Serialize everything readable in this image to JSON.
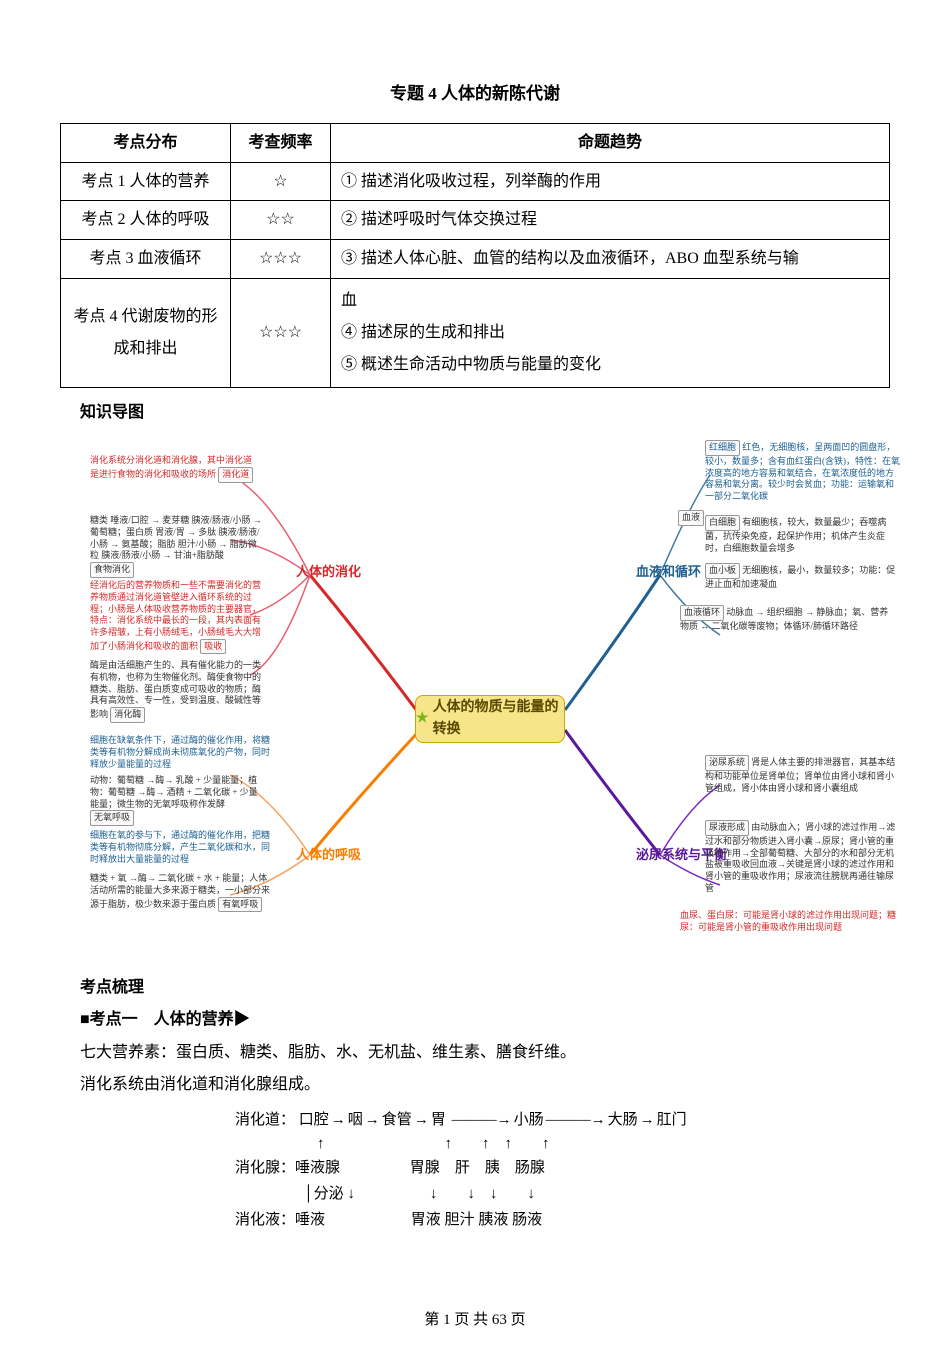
{
  "title": "专题 4 人体的新陈代谢",
  "table": {
    "headers": [
      "考点分布",
      "考查频率",
      "命题趋势"
    ],
    "rows": [
      {
        "c1": "考点 1 人体的营养",
        "c2": "☆",
        "c3": "① 描述消化吸收过程，列举酶的作用"
      },
      {
        "c1": "考点 2 人体的呼吸",
        "c2": "☆☆",
        "c3": "② 描述呼吸时气体交换过程"
      },
      {
        "c1": "考点 3 血液循环",
        "c2": "☆☆☆",
        "c3": "③ 描述人体心脏、血管的结构以及血液循环，ABO 血型系统与输"
      },
      {
        "c1": "考点 4 代谢废物的形成和排出",
        "c2": "☆☆☆",
        "c3": "血\n④ 描述尿的生成和排出\n⑤ 概述生命活动中物质与能量的变化"
      }
    ]
  },
  "section1": "知识导图",
  "mindmap": {
    "center": "人体的物质与能量的转换",
    "branches": {
      "digestion": {
        "label": "人体的消化",
        "color": "#d62828",
        "sub": [
          {
            "name": "消化道",
            "note": "消化系统分消化道和消化腺，其中消化道是进行食物的消化和吸收的场所"
          },
          {
            "name": "食物消化",
            "detail": "糖类 唾液/口腔 → 麦芽糖 胰液/肠液/小肠 → 葡萄糖；蛋白质 胃液/胃 → 多肽 胰液/肠液/小肠 → 氨基酸；脂肪 胆汁/小肠 → 脂肪微粒 胰液/肠液/小肠 → 甘油+脂肪酸"
          },
          {
            "name": "吸收",
            "note": "经消化后的营养物质和一些不需要消化的营养物质通过消化道管壁进入循环系统的过程；小肠是人体吸收营养物质的主要器官，特点：消化系统中最长的一段，其内表面有许多褶皱，上有小肠绒毛，小肠绒毛大大增加了小肠消化和吸收的面积"
          },
          {
            "name": "消化酶",
            "note": "酶是由活细胞产生的、具有催化能力的一类有机物，也称为生物催化剂。酶使食物中的糖类、脂肪、蛋白质变成可吸收的物质；酶具有高效性、专一性，受到温度、酸碱性等影响"
          }
        ]
      },
      "respiration": {
        "label": "人体的呼吸",
        "color": "#f77f00",
        "sub": [
          {
            "name": "无氧呼吸",
            "note": "细胞在缺氧条件下，通过酶的催化作用，将糖类等有机物分解成尚未彻底氧化的产物，同时释放少量能量的过程",
            "detail": "动物：葡萄糖 →酶→ 乳酸 + 少量能量；植物：葡萄糖 →酶→ 酒精 + 二氧化碳 + 少量能量；微生物的无氧呼吸称作发酵"
          },
          {
            "name": "有氧呼吸",
            "note": "细胞在氧的参与下，通过酶的催化作用，把糖类等有机物彻底分解，产生二氧化碳和水，同时释放出大量能量的过程",
            "detail": "糖类 + 氧 →酶→ 二氧化碳 + 水 + 能量；人体活动所需的能量大多来源于糖类，一小部分来源于脂肪，极少数来源于蛋白质"
          }
        ]
      },
      "circulation": {
        "label": "血液和循环",
        "color": "#1e6091",
        "sub": [
          {
            "name": "血液",
            "children": [
              {
                "name": "红细胞",
                "note": "红色，无细胞核，呈两面凹的圆盘形，较小，数量多；含有血红蛋白(含铁)，特性：在氧浓度高的地方容易和氧结合，在氧浓度低的地方容易和氧分离。较少时会贫血；功能：运输氧和一部分二氧化碳"
              },
              {
                "name": "白细胞",
                "note": "有细胞核，较大，数量最少；吞噬病菌，抗传染免疫，起保护作用；机体产生炎症时，白细胞数量会增多"
              },
              {
                "name": "血小板",
                "note": "无细胞核，最小，数量较多；功能：促进止血和加速凝血"
              }
            ]
          },
          {
            "name": "血液循环",
            "detail": "动脉血 → 组织细胞 → 静脉血；氧、营养物质 ↔ 二氧化碳等废物；体循环/肺循环路径"
          }
        ]
      },
      "urinary": {
        "label": "泌尿系统与平衡",
        "color": "#5a189a",
        "sub": [
          {
            "name": "泌尿系统",
            "note": "肾是人体主要的排泄器官，其基本结构和功能单位是肾单位；肾单位由肾小球和肾小管组成，肾小体由肾小球和肾小囊组成"
          },
          {
            "name": "尿液形成",
            "note": "由动脉血入；肾小球的滤过作用→滤过水和部分物质进入肾小囊→原尿；肾小管的重吸收作用→全部葡萄糖、大部分的水和部分无机盐被重吸收回血液→关键是肾小球的滤过作用和肾小管的重吸收作用；尿液流往膀胱再通往输尿管"
          },
          {
            "name": "异常",
            "note": "血尿、蛋白尿：可能是肾小球的滤过作用出现问题；糖尿：可能是肾小管的重吸收作用出现问题"
          }
        ]
      }
    }
  },
  "review": {
    "heading": "考点梳理",
    "sub": "■考点一　人体的营养▶",
    "line1": "七大营养素：蛋白质、糖类、脂肪、水、无机盐、维生素、膳食纤维。",
    "line2": "消化系统由消化道和消化腺组成。",
    "diagram": {
      "row1": {
        "label": "消化道：",
        "items": [
          "口腔",
          "咽",
          "食管",
          "胃",
          "小肠",
          "大肠",
          "肛门"
        ]
      },
      "row2": {
        "label": "消化腺：",
        "items": [
          "唾液腺",
          "胃腺",
          "肝",
          "胰",
          "肠腺"
        ]
      },
      "row3": {
        "label": "消化液：",
        "items": [
          "唾液",
          "胃液",
          "胆汁",
          "胰液",
          "肠液"
        ]
      },
      "mid_label": "分泌"
    }
  },
  "footer": {
    "text": "第 1 页 共 63 页"
  }
}
